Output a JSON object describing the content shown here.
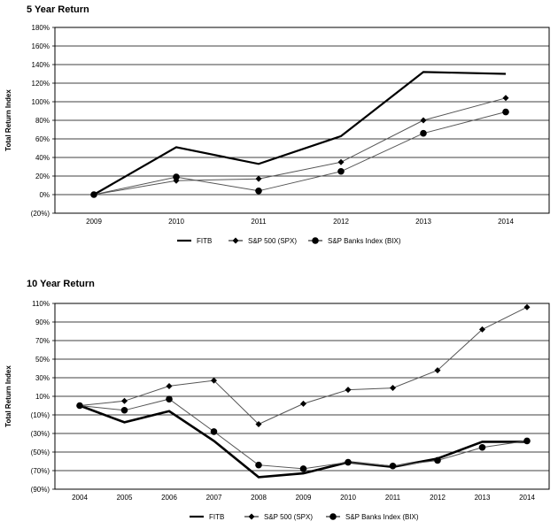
{
  "chart_data": [
    {
      "type": "line",
      "title": "5 Year Return",
      "ylabel": "Total Return Index",
      "xlabel": "",
      "categories": [
        "2009",
        "2010",
        "2011",
        "2012",
        "2013",
        "2014"
      ],
      "yticks": [
        "(20%)",
        "0%",
        "20%",
        "40%",
        "60%",
        "80%",
        "100%",
        "120%",
        "140%",
        "160%",
        "180%"
      ],
      "ylim": [
        -20,
        180
      ],
      "grid": true,
      "legend": "bottom",
      "series": [
        {
          "name": "FITB",
          "marker": "none",
          "values": [
            0,
            51,
            33,
            63,
            132,
            130
          ]
        },
        {
          "name": "S&P 500 (SPX)",
          "marker": "diamond",
          "values": [
            0,
            15,
            17,
            35,
            80,
            104
          ]
        },
        {
          "name": "S&P Banks Index (BIX)",
          "marker": "circle",
          "values": [
            0,
            19,
            4,
            25,
            66,
            89
          ]
        }
      ]
    },
    {
      "type": "line",
      "title": "10 Year Return",
      "ylabel": "Total Return Index",
      "xlabel": "",
      "categories": [
        "2004",
        "2005",
        "2006",
        "2007",
        "2008",
        "2009",
        "2010",
        "2011",
        "2012",
        "2013",
        "2014"
      ],
      "yticks": [
        "(90%)",
        "(70%)",
        "(50%)",
        "(30%)",
        "(10%)",
        "10%",
        "30%",
        "50%",
        "70%",
        "90%",
        "110%"
      ],
      "ylim": [
        -90,
        110
      ],
      "grid": true,
      "legend": "bottom",
      "series": [
        {
          "name": "FITB",
          "marker": "none",
          "values": [
            0,
            -18,
            -6,
            -38,
            -77,
            -73,
            -61,
            -66,
            -57,
            -39,
            -39
          ]
        },
        {
          "name": "S&P 500 (SPX)",
          "marker": "diamond",
          "values": [
            0,
            5,
            21,
            27,
            -20,
            2,
            17,
            19,
            38,
            82,
            106
          ]
        },
        {
          "name": "S&P Banks Index (BIX)",
          "marker": "circle",
          "values": [
            0,
            -5,
            7,
            -28,
            -64,
            -68,
            -61,
            -65,
            -59,
            -45,
            -38
          ]
        }
      ]
    }
  ]
}
